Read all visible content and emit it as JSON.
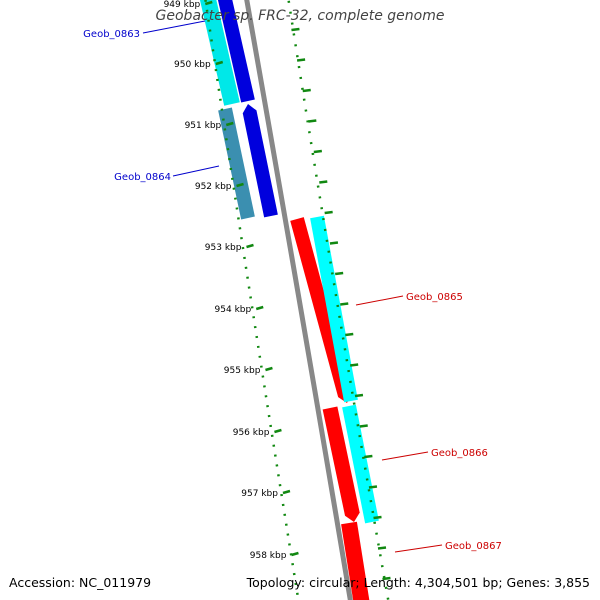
{
  "title": "Geobacter sp. FRC-32, complete genome",
  "accession": "Accession: NC_011979",
  "summary": "Topology: circular; Length: 4,304,501 bp; Genes: 3,855",
  "kbp_labels": [
    "949 kbp",
    "950 kbp",
    "951 kbp",
    "952 kbp",
    "953 kbp",
    "954 kbp",
    "955 kbp",
    "956 kbp",
    "957 kbp",
    "958 kbp"
  ],
  "genes": [
    {
      "id": "Geob_0863",
      "strand": "reverse"
    },
    {
      "id": "Geob_0864",
      "strand": "reverse"
    },
    {
      "id": "Geob_0865",
      "strand": "forward"
    },
    {
      "id": "Geob_0866",
      "strand": "forward"
    },
    {
      "id": "Geob_0867",
      "strand": "forward"
    }
  ],
  "colors": {
    "forward_gene": "#ff0000",
    "reverse_gene": "#0000dd",
    "forward_cds": "#00ffff",
    "reverse_cds": "#00e8e8",
    "reverse_cds_dark": "#3b8fb0",
    "backbone": "#888888",
    "tick": "#118811",
    "label_reverse": "#0000cc",
    "label_forward": "#cc0000",
    "title": "#444444"
  }
}
